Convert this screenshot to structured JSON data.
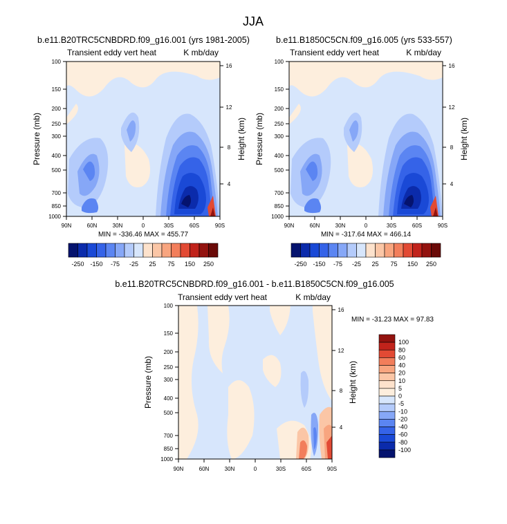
{
  "page": {
    "title": "JJA"
  },
  "chart_data": [
    {
      "type": "heatmap",
      "id": "panel-a",
      "title": "b.e11.B20TRC5CNBDRD.f09_g16.001 (yrs 1981-2005)",
      "left_label": "Transient eddy vert heat",
      "right_label": "K mb/day",
      "xlabel": "",
      "ylabel": "Pressure (mb)",
      "y2label": "Height (km)",
      "x_ticks": [
        "90N",
        "60N",
        "30N",
        "0",
        "30S",
        "60S",
        "90S"
      ],
      "x_tick_values": [
        90,
        60,
        30,
        0,
        -30,
        -60,
        -90
      ],
      "xlim": [
        90,
        -90
      ],
      "y_ticks": [
        "100",
        "150",
        "200",
        "250",
        "300",
        "400",
        "500",
        "700",
        "850",
        "1000"
      ],
      "y_tick_values": [
        100,
        150,
        200,
        250,
        300,
        400,
        500,
        700,
        850,
        1000
      ],
      "ylim": [
        1000,
        100
      ],
      "y_scale": "log",
      "y2_ticks": [
        "16",
        "12",
        "8",
        "4"
      ],
      "y2_tick_values": [
        16,
        12,
        8,
        4
      ],
      "stats": "MIN = -336.46   MAX = 455.77",
      "min": -336.46,
      "max": 455.77
    },
    {
      "type": "heatmap",
      "id": "panel-b",
      "title": "b.e11.B1850C5CN.f09_g16.005 (yrs 533-557)",
      "left_label": "Transient eddy vert heat",
      "right_label": "K mb/day",
      "xlabel": "",
      "ylabel": "Pressure (mb)",
      "y2label": "Height (km)",
      "x_ticks": [
        "90N",
        "60N",
        "30N",
        "0",
        "30S",
        "60S",
        "90S"
      ],
      "x_tick_values": [
        90,
        60,
        30,
        0,
        -30,
        -60,
        -90
      ],
      "xlim": [
        90,
        -90
      ],
      "y_ticks": [
        "100",
        "150",
        "200",
        "250",
        "300",
        "400",
        "500",
        "700",
        "850",
        "1000"
      ],
      "y_tick_values": [
        100,
        150,
        200,
        250,
        300,
        400,
        500,
        700,
        850,
        1000
      ],
      "ylim": [
        1000,
        100
      ],
      "y_scale": "log",
      "y2_ticks": [
        "16",
        "12",
        "8",
        "4"
      ],
      "y2_tick_values": [
        16,
        12,
        8,
        4
      ],
      "stats": "MIN = -317.64   MAX = 466.14",
      "min": -317.64,
      "max": 466.14
    },
    {
      "type": "heatmap",
      "id": "panel-c",
      "title": "b.e11.B20TRC5CNBDRD.f09_g16.001 - b.e11.B1850C5CN.f09_g16.005",
      "left_label": "Transient eddy vert heat",
      "right_label": "K mb/day",
      "xlabel": "",
      "ylabel": "Pressure (mb)",
      "y2label": "Height (km)",
      "x_ticks": [
        "90N",
        "60N",
        "30N",
        "0",
        "30S",
        "60S",
        "90S"
      ],
      "x_tick_values": [
        90,
        60,
        30,
        0,
        -30,
        -60,
        -90
      ],
      "xlim": [
        90,
        -90
      ],
      "y_ticks": [
        "100",
        "150",
        "200",
        "250",
        "300",
        "400",
        "500",
        "700",
        "850",
        "1000"
      ],
      "y_tick_values": [
        100,
        150,
        200,
        250,
        300,
        400,
        500,
        700,
        850,
        1000
      ],
      "ylim": [
        1000,
        100
      ],
      "y_scale": "log",
      "y2_ticks": [
        "16",
        "12",
        "8",
        "4"
      ],
      "y2_tick_values": [
        16,
        12,
        8,
        4
      ],
      "stats": "MIN = -31.23  MAX =  97.83",
      "min": -31.23,
      "max": 97.83
    }
  ],
  "colorbars": {
    "shared": {
      "orientation": "horizontal",
      "labels": [
        "-250",
        "-150",
        "-75",
        "-25",
        "25",
        "75",
        "150",
        "250"
      ],
      "levels": [
        -250,
        -200,
        -150,
        -100,
        -75,
        -50,
        -25,
        0,
        25,
        50,
        75,
        100,
        150,
        200,
        250
      ],
      "colors": [
        "#05136e",
        "#0b2bab",
        "#1a49d6",
        "#3563e8",
        "#5b85f2",
        "#86a7f7",
        "#b4cbfb",
        "#d7e6fc",
        "#fde2cc",
        "#fbc6a6",
        "#f8a57f",
        "#f27e5b",
        "#e24a34",
        "#c1231b",
        "#93130f",
        "#6a0a08"
      ]
    },
    "diff": {
      "orientation": "vertical",
      "labels": [
        "100",
        "80",
        "60",
        "40",
        "20",
        "10",
        "5",
        "0",
        "-5",
        "-10",
        "-20",
        "-40",
        "-60",
        "-80",
        "-100"
      ],
      "levels": [
        100,
        80,
        60,
        40,
        20,
        10,
        5,
        0,
        -5,
        -10,
        -20,
        -40,
        -60,
        -80,
        -100
      ],
      "colors": [
        "#93130f",
        "#c1231b",
        "#e24a34",
        "#f27e5b",
        "#f8a57f",
        "#fbc6a6",
        "#fde2cc",
        "#fdeedd",
        "#d7e6fc",
        "#b4cbfb",
        "#86a7f7",
        "#5b85f2",
        "#3563e8",
        "#1a49d6",
        "#0b2bab",
        "#05136e"
      ]
    }
  }
}
